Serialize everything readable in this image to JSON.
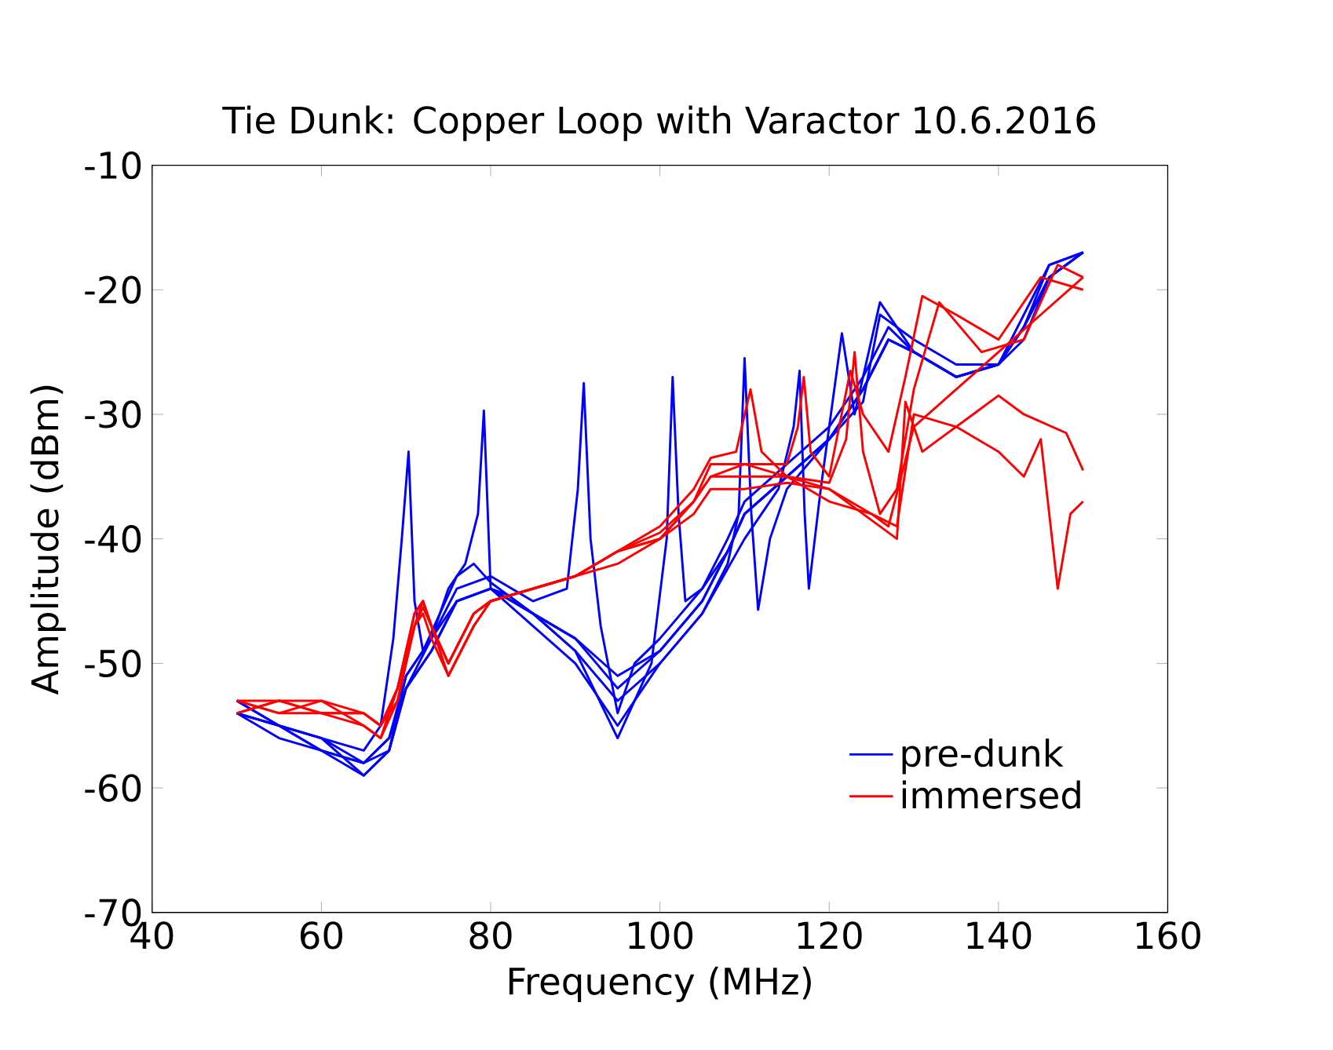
{
  "chart_data": {
    "type": "line",
    "title": "Tie Dunk: Copper Loop with Varactor 10.6.2016",
    "xlabel": "Frequency (MHz)",
    "ylabel": "Amplitude (dBm)",
    "xlim": [
      40,
      160
    ],
    "ylim": [
      -70,
      -10
    ],
    "xticks": [
      40,
      60,
      80,
      100,
      120,
      140,
      160
    ],
    "yticks": [
      -70,
      -60,
      -50,
      -40,
      -30,
      -20,
      -10
    ],
    "grid": false,
    "legend": "bottom right",
    "marker": "none",
    "line_style": "solid",
    "series": [
      {
        "name": "pre-dunk",
        "color": "#0000ff",
        "x": [
          50,
          55,
          60,
          65,
          67,
          68.5,
          69.5,
          70.3,
          71,
          72,
          74,
          76,
          78,
          80,
          85,
          90,
          95,
          100,
          105,
          108,
          110,
          115,
          120,
          124,
          127,
          130,
          135,
          140,
          143,
          146,
          150
        ],
        "values": [
          -54,
          -55,
          -56,
          -57,
          -55,
          -48,
          -40,
          -33,
          -45,
          -49,
          -46,
          -43,
          -42,
          -43.5,
          -46,
          -48,
          -51,
          -49,
          -45,
          -41,
          -38,
          -35,
          -32,
          -28,
          -24,
          -25,
          -27,
          -26,
          -24,
          -19,
          -17
        ]
      },
      {
        "color": "#0000ff",
        "x": [
          50,
          55,
          60,
          65,
          68,
          70,
          73,
          75,
          77,
          78.5,
          79.2,
          80,
          82,
          85,
          90,
          95,
          100,
          105,
          108,
          110,
          115,
          120,
          124,
          126,
          128,
          130,
          135,
          140,
          143,
          146,
          150
        ],
        "values": [
          -54,
          -56,
          -57,
          -58,
          -56,
          -51,
          -48,
          -44,
          -42,
          -38,
          -29.7,
          -44,
          -44.5,
          -46,
          -48,
          -52,
          -49,
          -45,
          -41,
          -38,
          -35,
          -32,
          -29,
          -22,
          -23,
          -24,
          -26,
          -26,
          -23,
          -18,
          -17
        ]
      },
      {
        "color": "#0000ff",
        "x": [
          50,
          55,
          60,
          65,
          68,
          70,
          73,
          76,
          80,
          85,
          89,
          90.3,
          91,
          91.8,
          93,
          95,
          97,
          100,
          105,
          108,
          110,
          115,
          120,
          124,
          127,
          130,
          135,
          140,
          143,
          146,
          150
        ],
        "values": [
          -53,
          -55,
          -56,
          -58,
          -57,
          -51,
          -48,
          -44,
          -43,
          -45,
          -44,
          -36,
          -27.5,
          -40,
          -47,
          -54,
          -50,
          -48,
          -44,
          -40,
          -37,
          -34,
          -31,
          -27,
          -23,
          -25,
          -27,
          -26,
          -22,
          -18,
          -17
        ]
      },
      {
        "color": "#0000ff",
        "x": [
          50,
          55,
          60,
          65,
          68,
          70,
          73,
          76,
          80,
          85,
          90,
          95,
          99,
          100.8,
          101.5,
          102.2,
          103,
          105,
          108,
          110,
          115,
          120,
          124,
          127,
          130,
          135,
          140,
          143,
          146,
          150
        ],
        "values": [
          -54,
          -55,
          -57,
          -59,
          -57,
          -52,
          -49,
          -45,
          -44,
          -46,
          -49,
          -56,
          -50,
          -40,
          -27,
          -38,
          -45,
          -44,
          -41,
          -38,
          -35,
          -32,
          -28,
          -24,
          -25,
          -27,
          -26,
          -23,
          -19,
          -17
        ]
      },
      {
        "color": "#0000ff",
        "x": [
          50,
          55,
          60,
          65,
          68,
          70,
          73,
          76,
          80,
          85,
          90,
          95,
          100,
          105,
          108,
          109.3,
          110,
          110.8,
          111.6,
          113,
          115,
          120,
          124,
          127,
          130,
          135,
          140,
          143,
          146,
          150
        ],
        "values": [
          -54,
          -55,
          -57,
          -58,
          -56,
          -52,
          -49,
          -45,
          -44,
          -47,
          -50,
          -55,
          -50,
          -46,
          -42,
          -38,
          -25.5,
          -38,
          -45.7,
          -40,
          -36,
          -32,
          -28,
          -24,
          -25,
          -27,
          -26,
          -23,
          -19,
          -17
        ]
      },
      {
        "color": "#0000ff",
        "x": [
          50,
          55,
          60,
          65,
          68,
          70,
          73,
          76,
          80,
          85,
          90,
          95,
          100,
          105,
          110,
          114,
          115.8,
          116.5,
          117.1,
          117.6,
          119,
          121.5,
          123,
          126,
          128,
          130,
          135,
          140,
          143,
          146,
          150
        ],
        "values": [
          -53,
          -55,
          -56,
          -59,
          -57,
          -52,
          -48,
          -45,
          -44,
          -46,
          -49,
          -53,
          -50,
          -46,
          -40,
          -36,
          -31,
          -26.5,
          -38,
          -44,
          -36,
          -23.5,
          -30,
          -21,
          -23,
          -25,
          -27,
          -26,
          -23,
          -19,
          -17
        ]
      },
      {
        "name": "immersed",
        "color": "#ff0000",
        "x": [
          50,
          55,
          60,
          65,
          67,
          69,
          71,
          72,
          73,
          75,
          78,
          80,
          85,
          90,
          95,
          100,
          104,
          106,
          109,
          110.7,
          112,
          115,
          120,
          125,
          127,
          130,
          135,
          140,
          145,
          150
        ],
        "values": [
          -53,
          -53,
          -54,
          -54,
          -55,
          -52,
          -46,
          -45,
          -47,
          -50,
          -46,
          -45,
          -44,
          -43,
          -41,
          -39,
          -36,
          -33.5,
          -33,
          -28,
          -33,
          -35,
          -36,
          -38,
          -39,
          -31,
          -28,
          -25,
          -22,
          -19
        ]
      },
      {
        "color": "#ff0000",
        "x": [
          50,
          55,
          60,
          65,
          67,
          69,
          71,
          72,
          73,
          75,
          78,
          80,
          85,
          90,
          95,
          100,
          104,
          106,
          110,
          115,
          116.3,
          117,
          117.8,
          120,
          122.5,
          124,
          127,
          129,
          131,
          135,
          140,
          145,
          150
        ],
        "values": [
          -54,
          -53,
          -53,
          -55,
          -56,
          -53,
          -47,
          -45.5,
          -47,
          -51,
          -47,
          -45,
          -44,
          -43,
          -41,
          -39.5,
          -37,
          -34,
          -34,
          -34,
          -31,
          -27,
          -33,
          -35,
          -26.5,
          -30,
          -33,
          -27,
          -20.5,
          -22,
          -24,
          -19,
          -20
        ]
      },
      {
        "color": "#ff0000",
        "x": [
          50,
          55,
          60,
          65,
          67,
          69,
          71,
          72,
          73,
          75,
          78,
          80,
          85,
          90,
          95,
          100,
          104,
          106,
          110,
          115,
          120,
          122,
          123,
          124,
          126,
          128,
          130,
          133,
          138,
          143,
          147,
          150
        ],
        "values": [
          -53,
          -54,
          -53,
          -54,
          -55,
          -52,
          -46,
          -45,
          -47,
          -50,
          -46,
          -45,
          -44,
          -43,
          -41,
          -40,
          -37,
          -35,
          -35,
          -35,
          -35.5,
          -32,
          -25,
          -33,
          -38,
          -36,
          -28,
          -21,
          -25,
          -24,
          -18,
          -19
        ]
      },
      {
        "color": "#ff0000",
        "x": [
          50,
          55,
          60,
          65,
          67,
          69,
          71,
          72,
          73,
          75,
          78,
          80,
          85,
          90,
          95,
          100,
          104,
          106,
          110,
          115,
          120,
          125,
          128,
          129,
          131,
          133,
          137,
          140,
          143,
          148,
          150
        ],
        "values": [
          -54,
          -53,
          -54,
          -55,
          -56,
          -52,
          -47,
          -46,
          -48,
          -51,
          -47,
          -45,
          -44,
          -43,
          -42,
          -40,
          -38,
          -36,
          -36,
          -35.5,
          -36,
          -38.5,
          -40,
          -29,
          -33,
          -32,
          -30,
          -28.5,
          -30,
          -31.5,
          -34.5
        ]
      },
      {
        "color": "#ff0000",
        "x": [
          50,
          55,
          60,
          65,
          67,
          69,
          71,
          72,
          73,
          75,
          78,
          80,
          85,
          90,
          95,
          100,
          104,
          106,
          110,
          115,
          120,
          125,
          128,
          130,
          135,
          140,
          143,
          145,
          147,
          148.5,
          150
        ],
        "values": [
          -53,
          -54,
          -54,
          -54,
          -55,
          -53,
          -47,
          -45,
          -47,
          -50,
          -46,
          -45,
          -44,
          -43,
          -41,
          -40,
          -37,
          -35,
          -34,
          -35,
          -37,
          -38,
          -39,
          -30,
          -31,
          -33,
          -35,
          -32,
          -44,
          -38,
          -37
        ]
      }
    ]
  }
}
